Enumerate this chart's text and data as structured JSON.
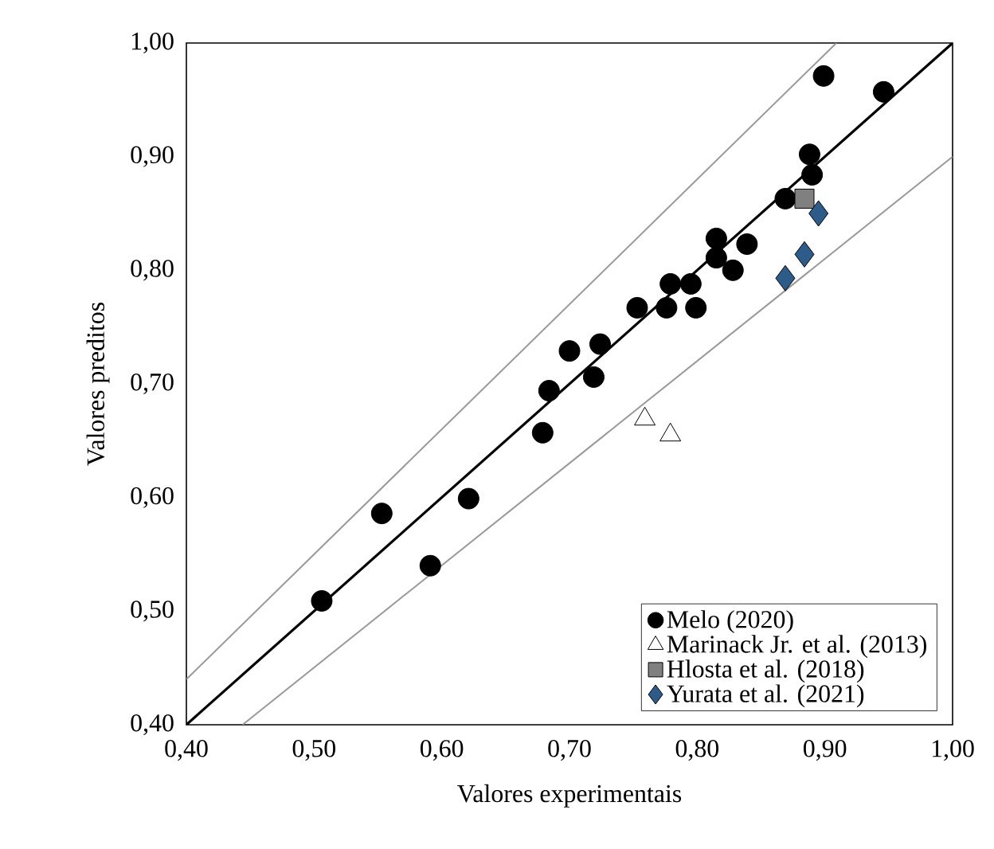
{
  "chart_data": {
    "type": "scatter",
    "xlabel": "Valores experimentais",
    "ylabel": "Valores preditos",
    "xlim": [
      0.4,
      1.0
    ],
    "ylim": [
      0.4,
      1.0
    ],
    "xticks": [
      {
        "value": 0.4,
        "label": "0,40"
      },
      {
        "value": 0.5,
        "label": "0,50"
      },
      {
        "value": 0.6,
        "label": "0,60"
      },
      {
        "value": 0.7,
        "label": "0,70"
      },
      {
        "value": 0.8,
        "label": "0,80"
      },
      {
        "value": 0.9,
        "label": "0,90"
      },
      {
        "value": 1.0,
        "label": "1,00"
      }
    ],
    "yticks": [
      {
        "value": 0.4,
        "label": "0,40"
      },
      {
        "value": 0.5,
        "label": "0,50"
      },
      {
        "value": 0.6,
        "label": "0,60"
      },
      {
        "value": 0.7,
        "label": "0,70"
      },
      {
        "value": 0.8,
        "label": "0,80"
      },
      {
        "value": 0.9,
        "label": "0,90"
      },
      {
        "value": 1.0,
        "label": "1,00"
      }
    ],
    "grid": false,
    "legend": "bottom right",
    "series": [
      {
        "name": "Melo (2020)",
        "type": "scatter",
        "marker": "circle",
        "color": "#000000",
        "x": [
          0.506,
          0.553,
          0.591,
          0.621,
          0.679,
          0.684,
          0.7,
          0.719,
          0.724,
          0.753,
          0.776,
          0.779,
          0.795,
          0.799,
          0.815,
          0.815,
          0.828,
          0.839,
          0.869,
          0.89,
          0.888,
          0.899,
          0.946
        ],
        "values": [
          0.509,
          0.586,
          0.54,
          0.599,
          0.657,
          0.694,
          0.729,
          0.706,
          0.735,
          0.767,
          0.767,
          0.788,
          0.788,
          0.767,
          0.828,
          0.811,
          0.8,
          0.823,
          0.863,
          0.884,
          0.902,
          0.971,
          0.957
        ]
      },
      {
        "name": "Marinack Jr. et al. (2013)",
        "type": "scatter",
        "marker": "triangle",
        "color": "#ffffff",
        "x": [
          0.759,
          0.779
        ],
        "values": [
          0.669,
          0.655
        ]
      },
      {
        "name": "Hlosta et al. (2018)",
        "type": "scatter",
        "marker": "square",
        "color": "#808080",
        "x": [
          0.884
        ],
        "values": [
          0.863
        ]
      },
      {
        "name": "Yurata et al. (2021)",
        "type": "scatter",
        "marker": "diamond",
        "color": "#2e5c8a",
        "x": [
          0.895,
          0.884,
          0.869
        ],
        "values": [
          0.85,
          0.814,
          0.793
        ]
      },
      {
        "type": "line",
        "marker": "none",
        "line_style": "solid",
        "color": "#000000",
        "x": [
          0.4,
          1.0
        ],
        "values": [
          0.4,
          1.0
        ]
      },
      {
        "type": "line",
        "marker": "none",
        "line_style": "solid",
        "color": "#999999",
        "x": [
          0.4,
          0.909
        ],
        "values": [
          0.44,
          1.0
        ]
      },
      {
        "type": "line",
        "marker": "none",
        "line_style": "solid",
        "color": "#999999",
        "x": [
          0.444,
          1.0
        ],
        "values": [
          0.4,
          0.9
        ]
      }
    ]
  }
}
